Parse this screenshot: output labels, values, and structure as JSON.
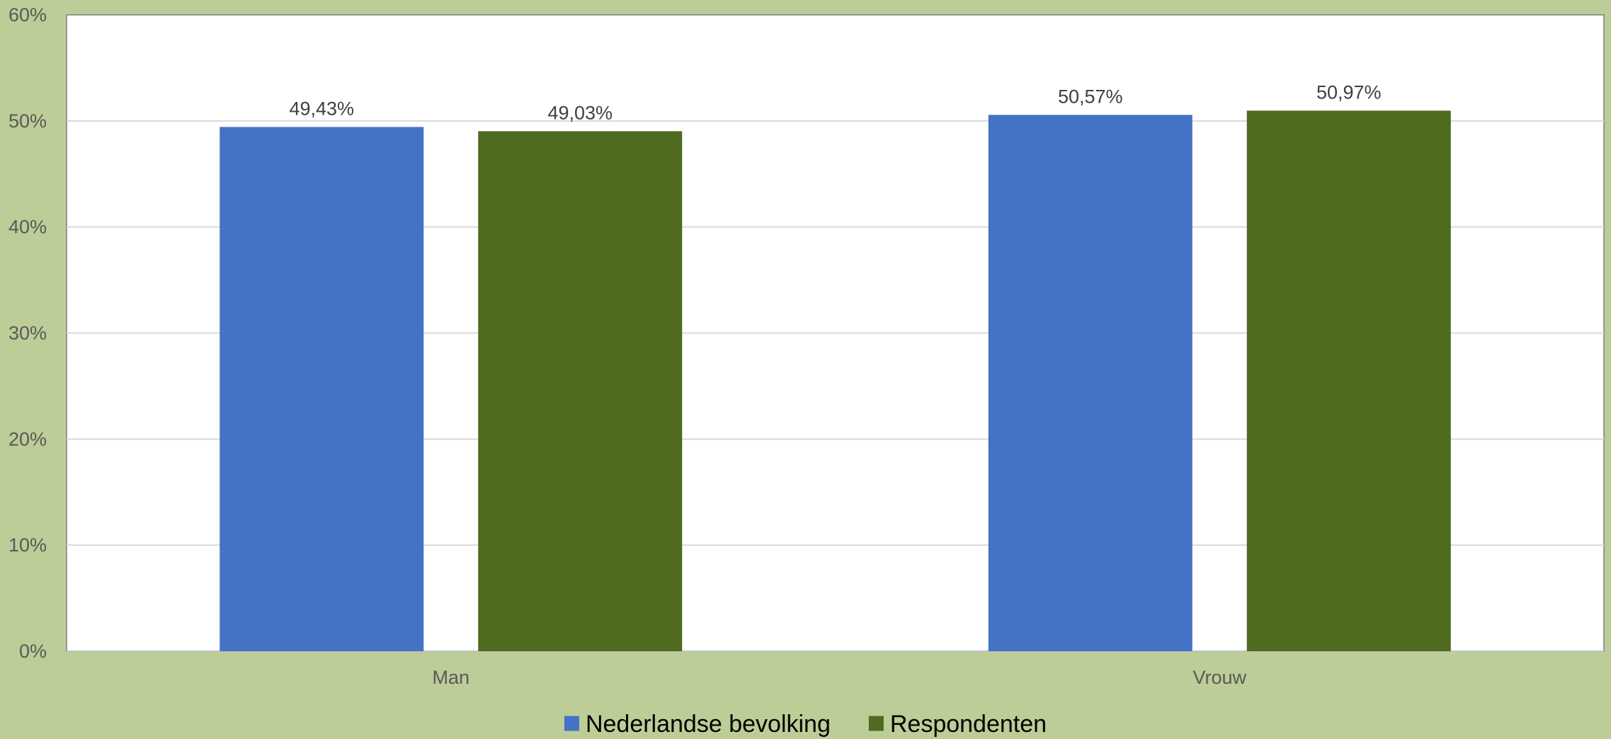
{
  "chart_data": {
    "type": "bar",
    "categories": [
      "Man",
      "Vrouw"
    ],
    "series": [
      {
        "name": "Nederlandse bevolking",
        "values": [
          49.43,
          50.57
        ],
        "labels": [
          "49,43%",
          "50,57%"
        ],
        "color": "#4472c4"
      },
      {
        "name": "Respondenten",
        "values": [
          49.03,
          50.97
        ],
        "labels": [
          "49,03%",
          "50,97%"
        ],
        "color": "#4e6b1f"
      }
    ],
    "ylim": [
      0,
      60
    ],
    "yticks": [
      "0%",
      "10%",
      "20%",
      "30%",
      "40%",
      "50%",
      "60%"
    ],
    "grid": true,
    "legend": "bottom",
    "title": "",
    "xlabel": "",
    "ylabel": ""
  },
  "colors": {
    "background": "#bccd97",
    "plot_area": "#ffffff",
    "gridline": "#d9d9d9"
  }
}
